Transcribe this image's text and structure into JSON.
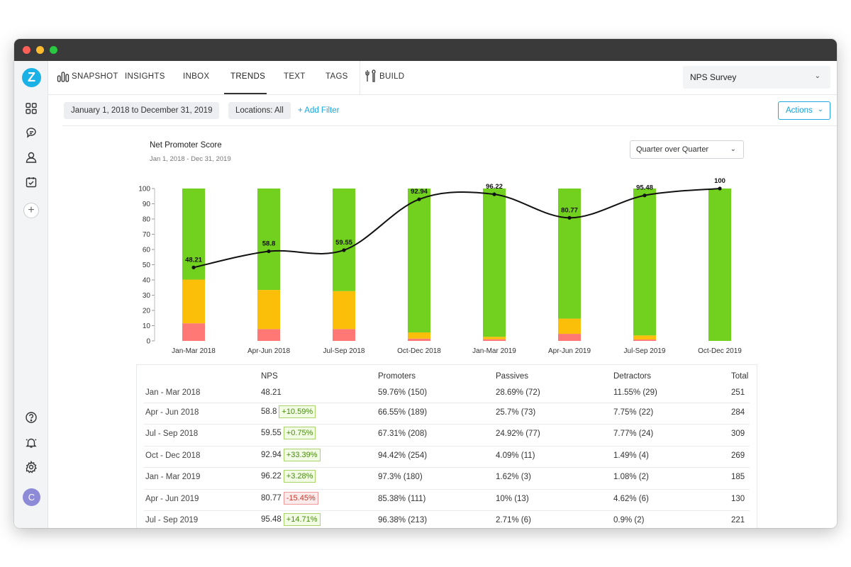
{
  "sidebar": {
    "logo": "Z",
    "icons": [
      "grid-icon",
      "chat-icon",
      "user-icon",
      "calendar-check-icon"
    ],
    "add_label": "+",
    "bottom_icons": [
      "help-icon",
      "bell-icon",
      "gear-icon"
    ],
    "avatar_initial": "C"
  },
  "nav": {
    "snapshot": "SNAPSHOT",
    "insights": "INSIGHTS",
    "inbox": "INBOX",
    "trends": "TRENDS",
    "text": "TEXT",
    "tags": "TAGS",
    "build": "BUILD",
    "active": "TRENDS",
    "survey": "NPS Survey"
  },
  "filters": {
    "date_range": "January 1, 2018 to December 31, 2019",
    "locations": "Locations: All",
    "add_filter": "+ Add Filter",
    "actions": "Actions"
  },
  "chart": {
    "title": "Net Promoter Score",
    "subtitle": "Jan 1, 2018 - Dec 31, 2019",
    "comparison": "Quarter over Quarter"
  },
  "colors": {
    "promoters": "#72d11f",
    "passives": "#fbbf0a",
    "detractors": "#ff7875",
    "line": "#111111",
    "accent": "#1aa7e0"
  },
  "chart_data": {
    "type": "bar",
    "stacked": true,
    "categories": [
      "Jan-Mar 2018",
      "Apr-Jun 2018",
      "Jul-Sep 2018",
      "Oct-Dec 2018",
      "Jan-Mar 2019",
      "Apr-Jun 2019",
      "Jul-Sep 2019",
      "Oct-Dec 2019"
    ],
    "series": [
      {
        "values": [
          11.55,
          7.75,
          7.77,
          1.49,
          1.08,
          4.62,
          0.9,
          0
        ]
      },
      {
        "values": [
          28.69,
          25.7,
          24.92,
          4.09,
          1.62,
          10,
          2.71,
          0
        ]
      },
      {
        "values": [
          59.76,
          66.55,
          67.31,
          94.42,
          97.3,
          85.38,
          96.38,
          100
        ]
      }
    ],
    "line": {
      "values": [
        48.21,
        58.8,
        59.55,
        92.94,
        96.22,
        80.77,
        95.48,
        100
      ]
    },
    "y_ticks": [
      0,
      10,
      20,
      30,
      40,
      50,
      60,
      70,
      80,
      90,
      100
    ],
    "ylim": [
      0,
      100
    ],
    "grid": false,
    "legend": "none"
  },
  "table": {
    "headers": [
      "",
      "NPS",
      "Promoters",
      "Passives",
      "Detractors",
      "Total"
    ],
    "rows": [
      {
        "label": "Jan - Mar 2018",
        "nps": "48.21",
        "delta": "",
        "delta_sign": "",
        "promoters": "59.76% (150)",
        "passives": "28.69% (72)",
        "detractors": "11.55% (29)",
        "total": "251"
      },
      {
        "label": "Apr - Jun 2018",
        "nps": "58.8",
        "delta": "+10.59%",
        "delta_sign": "pos",
        "promoters": "66.55% (189)",
        "passives": "25.7% (73)",
        "detractors": "7.75% (22)",
        "total": "284"
      },
      {
        "label": "Jul - Sep 2018",
        "nps": "59.55",
        "delta": "+0.75%",
        "delta_sign": "pos",
        "promoters": "67.31% (208)",
        "passives": "24.92% (77)",
        "detractors": "7.77% (24)",
        "total": "309"
      },
      {
        "label": "Oct - Dec 2018",
        "nps": "92.94",
        "delta": "+33.39%",
        "delta_sign": "pos",
        "promoters": "94.42% (254)",
        "passives": "4.09% (11)",
        "detractors": "1.49% (4)",
        "total": "269"
      },
      {
        "label": "Jan - Mar 2019",
        "nps": "96.22",
        "delta": "+3.28%",
        "delta_sign": "pos",
        "promoters": "97.3% (180)",
        "passives": "1.62% (3)",
        "detractors": "1.08% (2)",
        "total": "185"
      },
      {
        "label": "Apr - Jun 2019",
        "nps": "80.77",
        "delta": "-15.45%",
        "delta_sign": "neg",
        "promoters": "85.38% (111)",
        "passives": "10% (13)",
        "detractors": "4.62% (6)",
        "total": "130"
      },
      {
        "label": "Jul - Sep 2019",
        "nps": "95.48",
        "delta": "+14.71%",
        "delta_sign": "pos",
        "promoters": "96.38% (213)",
        "passives": "2.71% (6)",
        "detractors": "0.9% (2)",
        "total": "221"
      }
    ]
  }
}
